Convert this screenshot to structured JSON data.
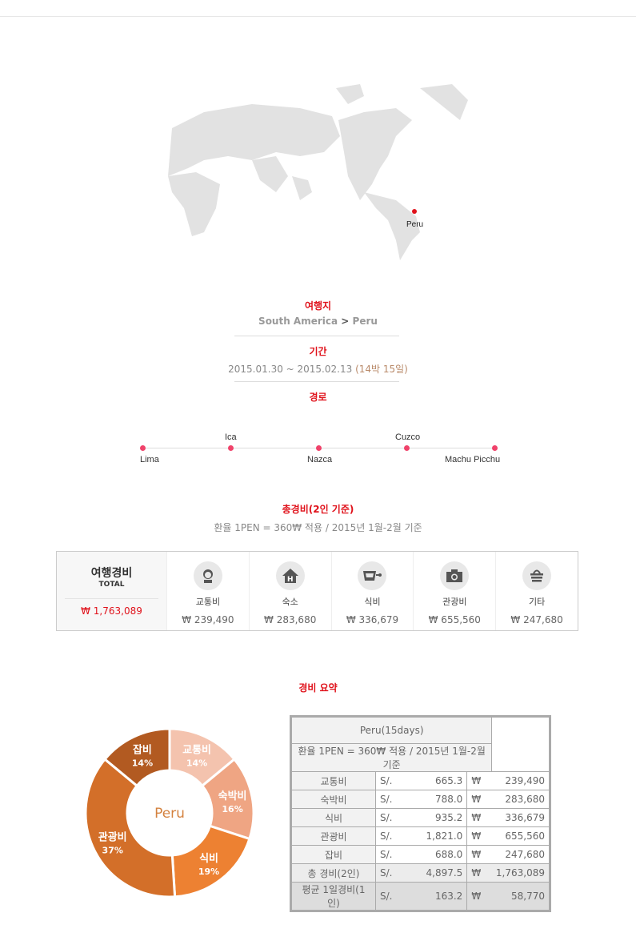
{
  "map": {
    "marker_label": "Peru",
    "marker_color": "#e0121b"
  },
  "destination": {
    "label": "여행지",
    "region": "South America",
    "separator_icon": "chevron-right",
    "country": "Peru"
  },
  "period": {
    "label": "기간",
    "dates": "2015.01.30 ~ 2015.02.13",
    "duration": "(14박 15일)"
  },
  "route": {
    "label": "경로",
    "cities": [
      "Lima",
      "Ica",
      "Nazca",
      "Cuzco",
      "Machu Picchu"
    ],
    "dot_color": "#f0426a"
  },
  "expenses": {
    "label": "총경비(2인 기준)",
    "rate_note": "환율 1PEN = 360₩ 적용 / 2015년 1월-2월 기준",
    "total_title": "여행경비",
    "total_sub": "TOTAL",
    "total_amount": "₩ 1,763,089",
    "categories": [
      {
        "icon": "person-icon",
        "label": "교통비",
        "amount": "₩ 239,490"
      },
      {
        "icon": "house-icon",
        "label": "숙소",
        "amount": "₩ 283,680"
      },
      {
        "icon": "cup-icon",
        "label": "식비",
        "amount": "₩ 336,679"
      },
      {
        "icon": "camera-icon",
        "label": "관광비",
        "amount": "₩ 655,560"
      },
      {
        "icon": "basket-icon",
        "label": "기타",
        "amount": "₩ 247,680"
      }
    ]
  },
  "summary": {
    "label": "경비 요약",
    "table_title": "Peru(15days)",
    "rate_note": "환율 1PEN = 360₩ 적용 / 2015년 1월-2월 기준",
    "rows": [
      {
        "label": "교통비",
        "pen_cur": "S/.",
        "pen": "665.3",
        "krw_cur": "₩",
        "krw": "239,490"
      },
      {
        "label": "숙박비",
        "pen_cur": "S/.",
        "pen": "788.0",
        "krw_cur": "₩",
        "krw": "283,680"
      },
      {
        "label": "식비",
        "pen_cur": "S/.",
        "pen": "935.2",
        "krw_cur": "₩",
        "krw": "336,679"
      },
      {
        "label": "관광비",
        "pen_cur": "S/.",
        "pen": "1,821.0",
        "krw_cur": "₩",
        "krw": "655,560"
      },
      {
        "label": "잡비",
        "pen_cur": "S/.",
        "pen": "688.0",
        "krw_cur": "₩",
        "krw": "247,680"
      }
    ],
    "total": {
      "label": "총 경비(2인)",
      "pen_cur": "S/.",
      "pen": "4,897.5",
      "krw_cur": "₩",
      "krw": "1,763,089"
    },
    "average": {
      "label": "평균 1일경비(1인)",
      "pen_cur": "S/.",
      "pen": "163.2",
      "krw_cur": "₩",
      "krw": "58,770"
    }
  },
  "chart_data": {
    "type": "pie",
    "donut": true,
    "center_label": "Peru",
    "categories": [
      "교통비",
      "숙박비",
      "식비",
      "관광비",
      "잡비"
    ],
    "values": [
      14,
      16,
      19,
      37,
      14
    ],
    "labels": [
      "14%",
      "16%",
      "19%",
      "37%",
      "14%"
    ],
    "colors": [
      "#f4c3ae",
      "#efa583",
      "#ed8132",
      "#d36f29",
      "#b25a21"
    ]
  }
}
